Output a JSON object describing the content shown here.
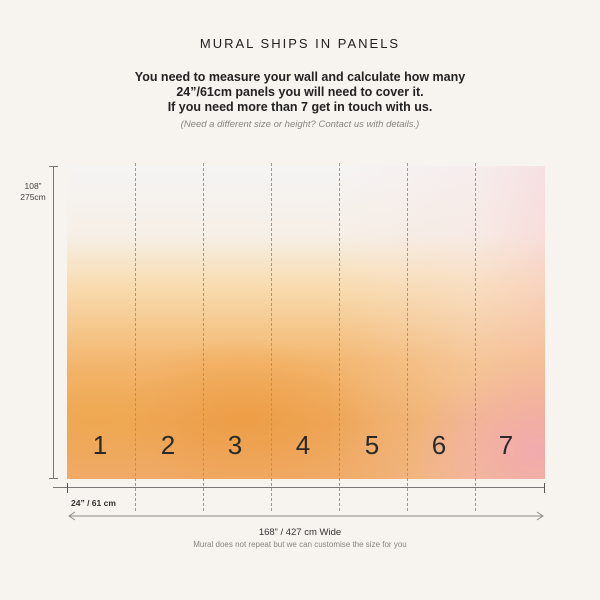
{
  "title": "MURAL SHIPS IN PANELS",
  "intro": {
    "line1": "You need to measure your wall and calculate how many",
    "line2": "24”/61cm panels you will need to cover it.",
    "line3": "If you need more than 7 get in touch with us."
  },
  "note": "(Need a different size or height? Contact us with details.)",
  "height": {
    "imperial": "108”",
    "metric": "275cm"
  },
  "panels": [
    "1",
    "2",
    "3",
    "4",
    "5",
    "6",
    "7"
  ],
  "panel_width": "24” / 61 cm",
  "total_width": "168” / 427 cm Wide",
  "width_note": "Mural does not repeat but we can customise the size for you",
  "colors": {
    "background": "#f7f3ef",
    "orange": "#eea75a",
    "pink": "#f2a8b2",
    "cloud": "#f5f4f4"
  }
}
